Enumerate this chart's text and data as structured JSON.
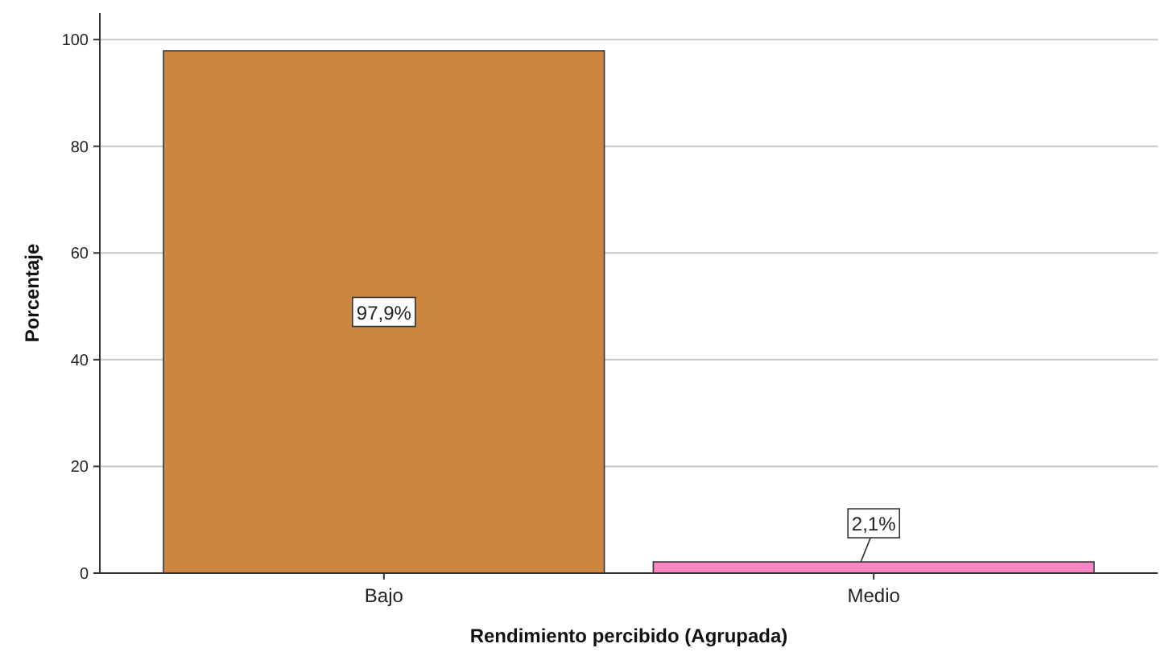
{
  "chart_data": {
    "type": "bar",
    "xlabel": "Rendimiento percibido (Agrupada)",
    "ylabel": "Porcentaje",
    "categories": [
      "Bajo",
      "Medio"
    ],
    "values": [
      97.9,
      2.1
    ],
    "colors": [
      "#cc8640",
      "#f887c4"
    ],
    "value_labels": [
      "97,9%",
      "2,1%"
    ],
    "ylim": [
      0,
      105
    ],
    "yticks": [
      0,
      20,
      40,
      60,
      80,
      100
    ],
    "grid": "y"
  }
}
